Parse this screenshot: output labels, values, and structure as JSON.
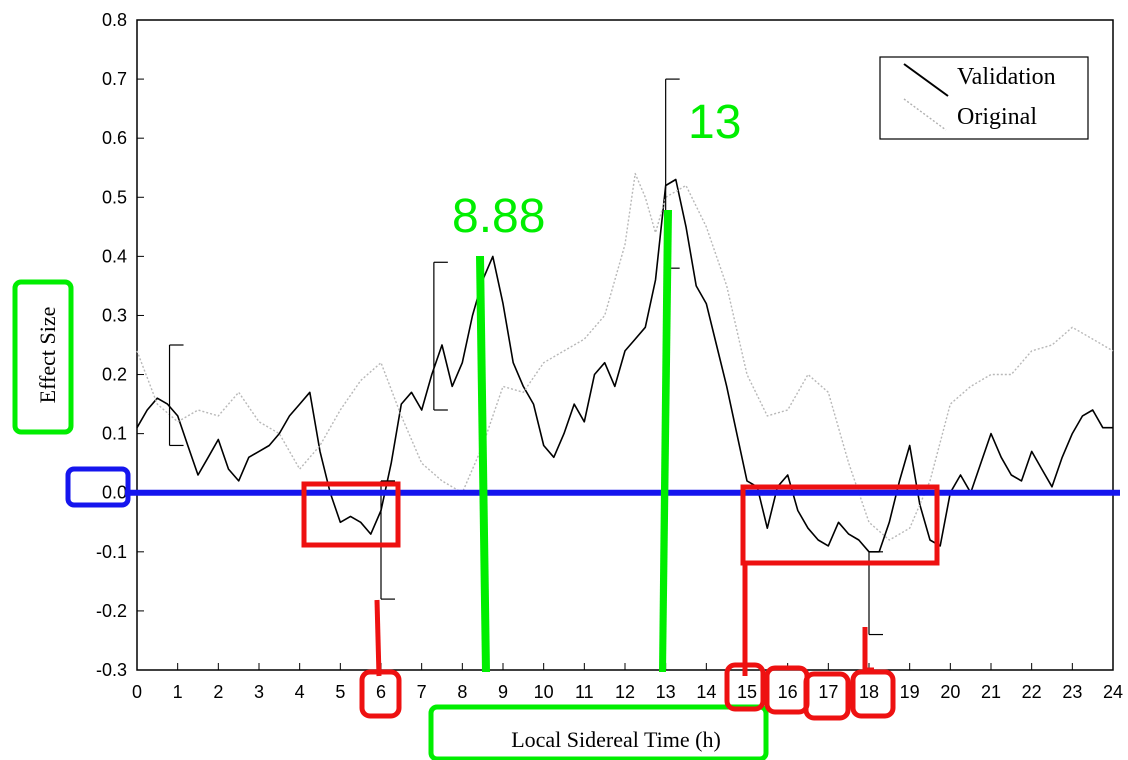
{
  "chart_data": {
    "type": "line",
    "title": "",
    "xlabel": "Local Sidereal Time (h)",
    "ylabel": "Effect Size",
    "xlim": [
      0,
      24
    ],
    "ylim": [
      -0.3,
      0.8
    ],
    "x_ticks": [
      0,
      1,
      2,
      3,
      4,
      5,
      6,
      7,
      8,
      9,
      10,
      11,
      12,
      13,
      14,
      15,
      16,
      17,
      18,
      19,
      20,
      21,
      22,
      23,
      24
    ],
    "y_ticks": [
      -0.3,
      -0.2,
      -0.1,
      0.0,
      0.1,
      0.2,
      0.3,
      0.4,
      0.5,
      0.6,
      0.7,
      0.8
    ],
    "legend": {
      "position": "top-right",
      "entries": [
        "Validation",
        "Original"
      ]
    },
    "series": [
      {
        "name": "Validation",
        "style": "solid",
        "color": "#000000",
        "x": [
          0,
          0.25,
          0.5,
          0.75,
          1,
          1.25,
          1.5,
          1.75,
          2,
          2.25,
          2.5,
          2.75,
          3,
          3.25,
          3.5,
          3.75,
          4,
          4.25,
          4.5,
          4.75,
          5,
          5.25,
          5.5,
          5.75,
          6,
          6.25,
          6.5,
          6.75,
          7,
          7.25,
          7.5,
          7.75,
          8,
          8.25,
          8.5,
          8.75,
          9,
          9.25,
          9.5,
          9.75,
          10,
          10.25,
          10.5,
          10.75,
          11,
          11.25,
          11.5,
          11.75,
          12,
          12.25,
          12.5,
          12.75,
          13,
          13.25,
          13.5,
          13.75,
          14,
          14.25,
          14.5,
          14.75,
          15,
          15.25,
          15.5,
          15.75,
          16,
          16.25,
          16.5,
          16.75,
          17,
          17.25,
          17.5,
          17.75,
          18,
          18.25,
          18.5,
          18.75,
          19,
          19.25,
          19.5,
          19.75,
          20,
          20.25,
          20.5,
          20.75,
          21,
          21.25,
          21.5,
          21.75,
          22,
          22.25,
          22.5,
          22.75,
          23,
          23.25,
          23.5,
          23.75,
          24
        ],
        "y": [
          0.11,
          0.14,
          0.16,
          0.15,
          0.13,
          0.08,
          0.03,
          0.06,
          0.09,
          0.04,
          0.02,
          0.06,
          0.07,
          0.08,
          0.1,
          0.13,
          0.15,
          0.17,
          0.07,
          0.0,
          -0.05,
          -0.04,
          -0.05,
          -0.07,
          -0.03,
          0.05,
          0.15,
          0.17,
          0.14,
          0.2,
          0.25,
          0.18,
          0.22,
          0.3,
          0.36,
          0.4,
          0.32,
          0.22,
          0.18,
          0.15,
          0.08,
          0.06,
          0.1,
          0.15,
          0.12,
          0.2,
          0.22,
          0.18,
          0.24,
          0.26,
          0.28,
          0.36,
          0.52,
          0.53,
          0.45,
          0.35,
          0.32,
          0.25,
          0.18,
          0.1,
          0.02,
          0.01,
          -0.06,
          0.01,
          0.03,
          -0.03,
          -0.06,
          -0.08,
          -0.09,
          -0.05,
          -0.07,
          -0.08,
          -0.1,
          -0.1,
          -0.05,
          0.02,
          0.08,
          -0.02,
          -0.08,
          -0.09,
          0.0,
          0.03,
          0.0,
          0.05,
          0.1,
          0.06,
          0.03,
          0.02,
          0.07,
          0.04,
          0.01,
          0.06,
          0.1,
          0.13,
          0.14,
          0.11,
          0.11
        ]
      },
      {
        "name": "Original",
        "style": "dotted",
        "color": "#b8b8b8",
        "x": [
          0,
          0.5,
          1,
          1.5,
          2,
          2.5,
          3,
          3.5,
          4,
          4.5,
          5,
          5.5,
          6,
          6.5,
          7,
          7.5,
          8,
          8.5,
          9,
          9.5,
          10,
          10.5,
          11,
          11.5,
          12,
          12.25,
          12.5,
          12.75,
          13,
          13.5,
          14,
          14.5,
          15,
          15.5,
          16,
          16.5,
          17,
          17.5,
          18,
          18.5,
          19,
          19.5,
          20,
          20.5,
          21,
          21.5,
          22,
          22.5,
          23,
          23.5,
          24
        ],
        "y": [
          0.24,
          0.15,
          0.12,
          0.14,
          0.13,
          0.17,
          0.12,
          0.1,
          0.04,
          0.08,
          0.14,
          0.19,
          0.22,
          0.13,
          0.05,
          0.02,
          0.0,
          0.08,
          0.18,
          0.17,
          0.22,
          0.24,
          0.26,
          0.3,
          0.42,
          0.54,
          0.5,
          0.44,
          0.5,
          0.52,
          0.45,
          0.35,
          0.2,
          0.13,
          0.14,
          0.2,
          0.17,
          0.05,
          -0.05,
          -0.08,
          -0.06,
          0.02,
          0.15,
          0.18,
          0.2,
          0.2,
          0.24,
          0.25,
          0.28,
          0.26,
          0.24
        ]
      }
    ],
    "error_bars": [
      {
        "x": 0.8,
        "low": 0.08,
        "high": 0.25
      },
      {
        "x": 6.0,
        "low": -0.18,
        "high": 0.02
      },
      {
        "x": 7.3,
        "low": 0.14,
        "high": 0.39
      },
      {
        "x": 13.0,
        "low": 0.38,
        "high": 0.7
      },
      {
        "x": 18.0,
        "low": -0.24,
        "high": -0.1
      }
    ]
  },
  "annotations": {
    "labels": [
      "8.88",
      "13"
    ],
    "colors": {
      "green": "#00ee00",
      "red": "#ee1111",
      "blue": "#1515ee"
    }
  }
}
